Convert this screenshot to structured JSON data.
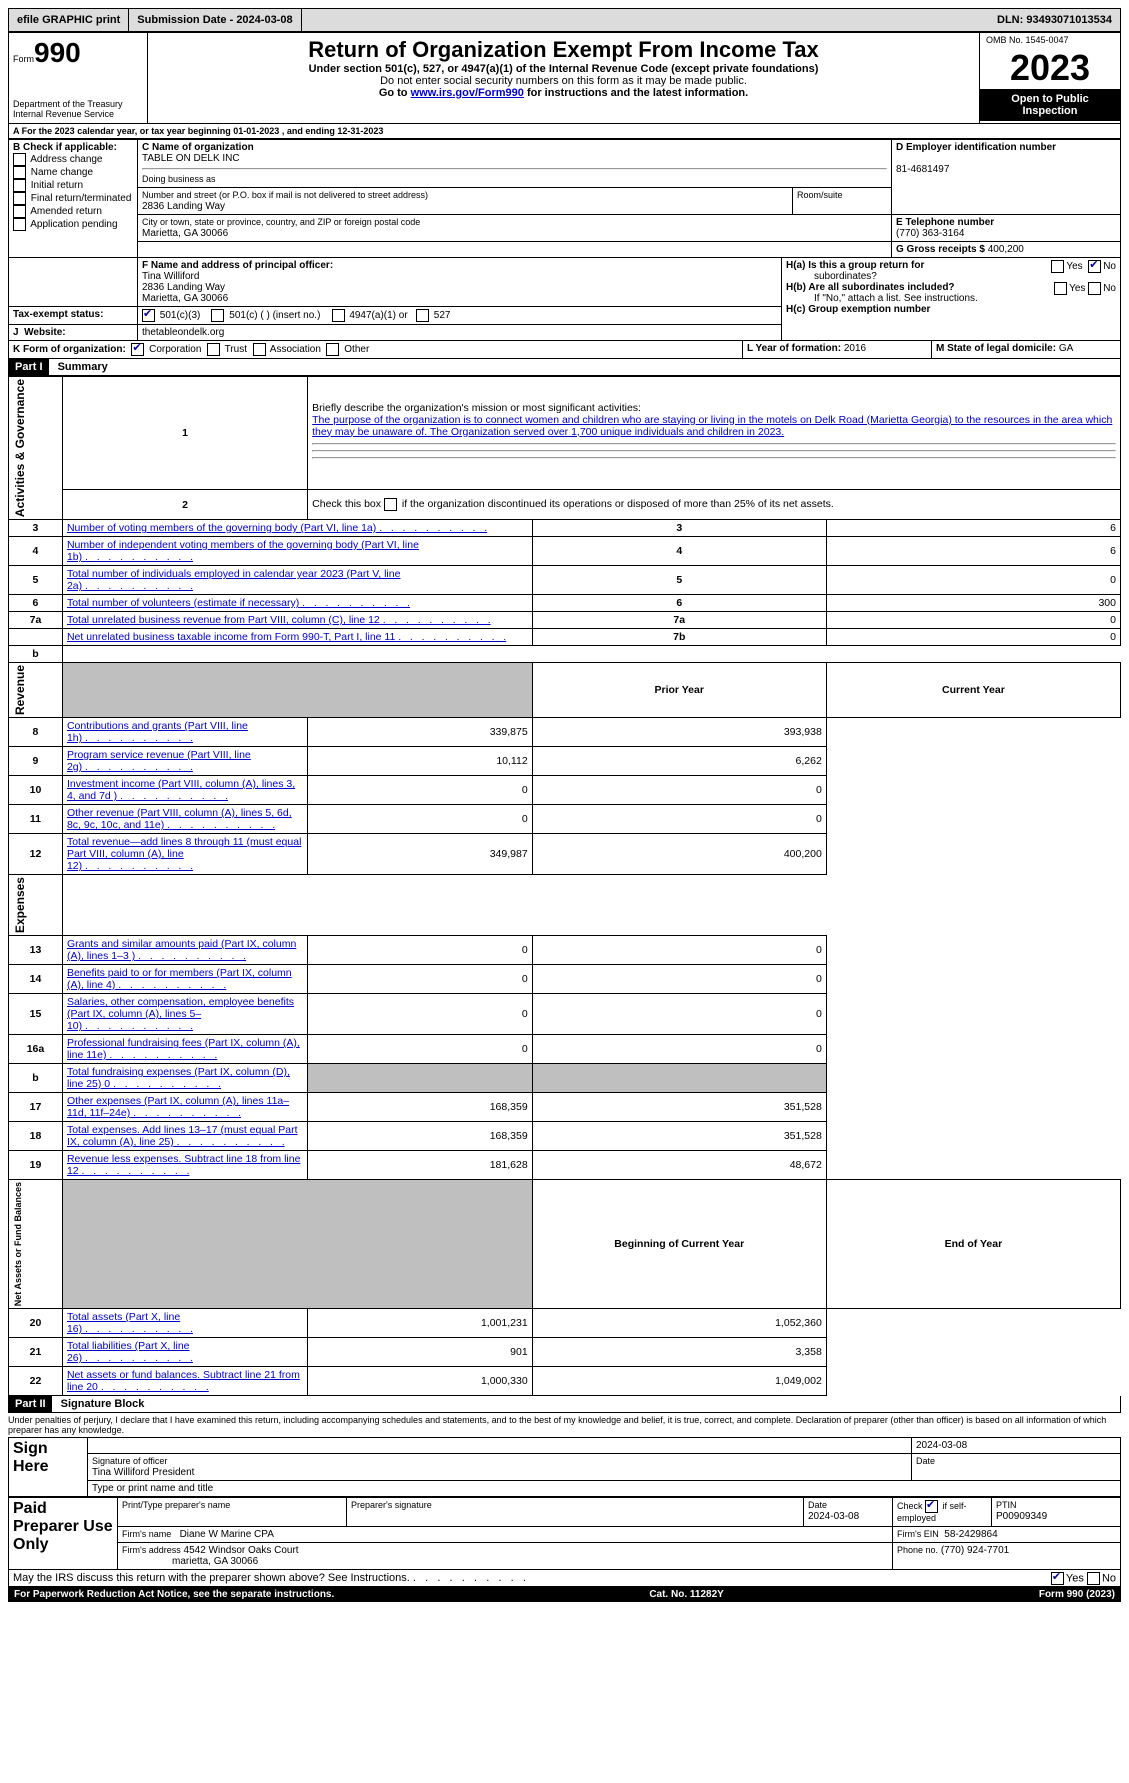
{
  "topbar": {
    "efile": "efile GRAPHIC print",
    "submission": "Submission Date - 2024-03-08",
    "dln": "DLN: 93493071013534"
  },
  "header": {
    "form_prefix": "Form",
    "form_number": "990",
    "title": "Return of Organization Exempt From Income Tax",
    "subtitle1": "Under section 501(c), 527, or 4947(a)(1) of the Internal Revenue Code (except private foundations)",
    "subtitle2": "Do not enter social security numbers on this form as it may be made public.",
    "subtitle3_prefix": "Go to ",
    "subtitle3_link": "www.irs.gov/Form990",
    "subtitle3_suffix": " for instructions and the latest information.",
    "dept": "Department of the Treasury",
    "irs": "Internal Revenue Service",
    "omb": "OMB No. 1545-0047",
    "year": "2023",
    "inspection": "Open to Public Inspection"
  },
  "period": {
    "text_a": "For the 2023 calendar year, or tax year beginning ",
    "begin": "01-01-2023",
    "text_b": " , and ending ",
    "end": "12-31-2023"
  },
  "boxB": {
    "label": "B Check if applicable:",
    "items": [
      "Address change",
      "Name change",
      "Initial return",
      "Final return/terminated",
      "Amended return",
      "Application pending"
    ]
  },
  "boxC": {
    "label": "C Name of organization",
    "name": "TABLE ON DELK INC",
    "dba_label": "Doing business as",
    "street_label": "Number and street (or P.O. box if mail is not delivered to street address)",
    "street": "2836 Landing Way",
    "room_label": "Room/suite",
    "city_label": "City or town, state or province, country, and ZIP or foreign postal code",
    "city": "Marietta, GA  30066"
  },
  "boxD": {
    "label": "D Employer identification number",
    "value": "81-4681497"
  },
  "boxE": {
    "label": "E Telephone number",
    "value": "(770) 363-3164"
  },
  "boxG": {
    "label": "G Gross receipts $ ",
    "value": "400,200"
  },
  "boxF": {
    "label": "F  Name and address of principal officer:",
    "name": "Tina Williford",
    "addr1": "2836 Landing Way",
    "addr2": "Marietta, GA  30066"
  },
  "boxH": {
    "ha": "H(a)  Is this a group return for",
    "ha2": "subordinates?",
    "hb": "H(b)  Are all subordinates included?",
    "hb_note": "If \"No,\" attach a list. See instructions.",
    "hc": "H(c)  Group exemption number",
    "yes": "Yes",
    "no": "No"
  },
  "boxI": {
    "label": "Tax-exempt status:",
    "opt1": "501(c)(3)",
    "opt2": "501(c) (   ) (insert no.)",
    "opt3": "4947(a)(1) or",
    "opt4": "527"
  },
  "boxJ": {
    "label": "Website:",
    "value": "thetableondelk.org"
  },
  "boxK": {
    "label": "K Form of organization:",
    "opts": [
      "Corporation",
      "Trust",
      "Association",
      "Other"
    ]
  },
  "boxL": {
    "label": "L Year of formation: ",
    "value": "2016"
  },
  "boxM": {
    "label": "M State of legal domicile: ",
    "value": "GA"
  },
  "part1": {
    "header": "Part I",
    "title": "Summary",
    "sideA": "Activities & Governance",
    "sideR": "Revenue",
    "sideE": "Expenses",
    "sideN": "Net Assets or Fund Balances",
    "line1_label": "Briefly describe the organization's mission or most significant activities:",
    "line1_text": "The purpose of the organization is to connect women and children who are staying or living in the motels on Delk Road (Marietta Georgia) to the resources in the area which they may be unaware of. The Organization served over 1,700 unique individuals and children in 2023.",
    "line2": "Check this box      if the organization discontinued its operations or disposed of more than 25% of its net assets.",
    "rows_single": [
      {
        "n": "3",
        "label": "Number of voting members of the governing body (Part VI, line 1a)",
        "box": "3",
        "val": "6"
      },
      {
        "n": "4",
        "label": "Number of independent voting members of the governing body (Part VI, line 1b)",
        "box": "4",
        "val": "6"
      },
      {
        "n": "5",
        "label": "Total number of individuals employed in calendar year 2023 (Part V, line 2a)",
        "box": "5",
        "val": "0"
      },
      {
        "n": "6",
        "label": "Total number of volunteers (estimate if necessary)",
        "box": "6",
        "val": "300"
      },
      {
        "n": "7a",
        "label": "Total unrelated business revenue from Part VIII, column (C), line 12",
        "box": "7a",
        "val": "0"
      },
      {
        "n": "",
        "label": "Net unrelated business taxable income from Form 990-T, Part I, line 11",
        "box": "7b",
        "val": "0"
      }
    ],
    "col_prior": "Prior Year",
    "col_current": "Current Year",
    "rows_rev": [
      {
        "n": "8",
        "label": "Contributions and grants (Part VIII, line 1h)",
        "p": "339,875",
        "c": "393,938"
      },
      {
        "n": "9",
        "label": "Program service revenue (Part VIII, line 2g)",
        "p": "10,112",
        "c": "6,262"
      },
      {
        "n": "10",
        "label": "Investment income (Part VIII, column (A), lines 3, 4, and 7d )",
        "p": "0",
        "c": "0"
      },
      {
        "n": "11",
        "label": "Other revenue (Part VIII, column (A), lines 5, 6d, 8c, 9c, 10c, and 11e)",
        "p": "0",
        "c": "0"
      },
      {
        "n": "12",
        "label": "Total revenue—add lines 8 through 11 (must equal Part VIII, column (A), line 12)",
        "p": "349,987",
        "c": "400,200"
      }
    ],
    "rows_exp": [
      {
        "n": "13",
        "label": "Grants and similar amounts paid (Part IX, column (A), lines 1–3 )",
        "p": "0",
        "c": "0"
      },
      {
        "n": "14",
        "label": "Benefits paid to or for members (Part IX, column (A), line 4)",
        "p": "0",
        "c": "0"
      },
      {
        "n": "15",
        "label": "Salaries, other compensation, employee benefits (Part IX, column (A), lines 5–10)",
        "p": "0",
        "c": "0"
      },
      {
        "n": "16a",
        "label": "Professional fundraising fees (Part IX, column (A), line 11e)",
        "p": "0",
        "c": "0"
      },
      {
        "n": "b",
        "label": "Total fundraising expenses (Part IX, column (D), line 25) 0",
        "p": "",
        "c": "",
        "shade": true
      },
      {
        "n": "17",
        "label": "Other expenses (Part IX, column (A), lines 11a–11d, 11f–24e)",
        "p": "168,359",
        "c": "351,528"
      },
      {
        "n": "18",
        "label": "Total expenses. Add lines 13–17 (must equal Part IX, column (A), line 25)",
        "p": "168,359",
        "c": "351,528"
      },
      {
        "n": "19",
        "label": "Revenue less expenses. Subtract line 18 from line 12",
        "p": "181,628",
        "c": "48,672"
      }
    ],
    "col_beg": "Beginning of Current Year",
    "col_end": "End of Year",
    "rows_net": [
      {
        "n": "20",
        "label": "Total assets (Part X, line 16)",
        "p": "1,001,231",
        "c": "1,052,360"
      },
      {
        "n": "21",
        "label": "Total liabilities (Part X, line 26)",
        "p": "901",
        "c": "3,358"
      },
      {
        "n": "22",
        "label": "Net assets or fund balances. Subtract line 21 from line 20",
        "p": "1,000,330",
        "c": "1,049,002"
      }
    ]
  },
  "part2": {
    "header": "Part II",
    "title": "Signature Block",
    "declaration": "Under penalties of perjury, I declare that I have examined this return, including accompanying schedules and statements, and to the best of my knowledge and belief, it is true, correct, and complete. Declaration of preparer (other than officer) is based on all information of which preparer has any knowledge."
  },
  "sign": {
    "sign_here": "Sign Here",
    "sig_officer": "Signature of officer",
    "officer_name": "Tina Williford  President",
    "type_name": "Type or print name and title",
    "date_label": "Date",
    "date": "2024-03-08"
  },
  "paid": {
    "label": "Paid Preparer Use Only",
    "print_name": "Print/Type preparer's name",
    "prep_sig": "Preparer's signature",
    "date_label": "Date",
    "date": "2024-03-08",
    "check_label": "Check",
    "check_suffix": "if self-employed",
    "ptin_label": "PTIN",
    "ptin": "P00909349",
    "firm_name_label": "Firm's name",
    "firm_name": "Diane W Marine CPA",
    "firm_ein_label": "Firm's EIN",
    "firm_ein": "58-2429864",
    "firm_addr_label": "Firm's address",
    "firm_addr1": "4542 Windsor Oaks Court",
    "firm_addr2": "marietta, GA  30066",
    "phone_label": "Phone no.",
    "phone": "(770) 924-7701"
  },
  "discuss": {
    "text": "May the IRS discuss this return with the preparer shown above? See Instructions.",
    "yes": "Yes",
    "no": "No"
  },
  "footer": {
    "left": "For Paperwork Reduction Act Notice, see the separate instructions.",
    "mid": "Cat. No. 11282Y",
    "right": "Form 990 (2023)"
  }
}
